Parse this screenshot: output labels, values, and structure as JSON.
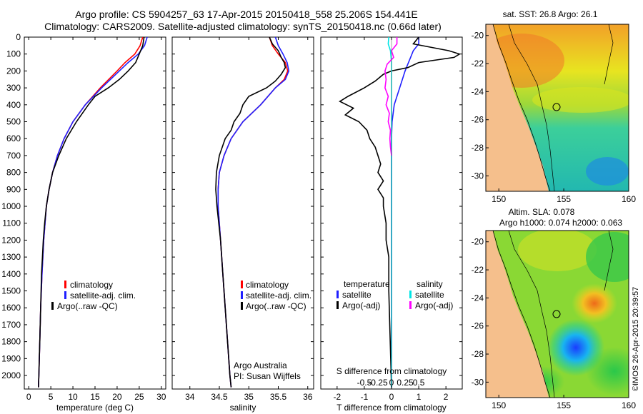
{
  "header": {
    "line1": "Argo profile: CS 5904257_63 17-Apr-2015 20150418_558 25.206S 154.441E",
    "line2": "Climatology: CARS2009. Satellite-adjusted climatology: synTS_20150418.nc (0.66d later)"
  },
  "colors": {
    "climatology": "#ff0000",
    "satellite": "#1f1fff",
    "argo": "#000000",
    "sat_salinity": "#00e5e5",
    "argo_salinity": "#ff00ff",
    "land": "#f5bf8c"
  },
  "chart_data": [
    {
      "type": "line",
      "id": "temperature",
      "xlabel": "temperature (deg C)",
      "xlim": [
        -1,
        31
      ],
      "xticks": [
        "0",
        "5",
        "10",
        "15",
        "20",
        "25",
        "30"
      ],
      "ylim": [
        0,
        2080
      ],
      "yticks": [
        "0",
        "100",
        "200",
        "300",
        "400",
        "500",
        "600",
        "700",
        "800",
        "900",
        "1000",
        "1100",
        "1200",
        "1300",
        "1400",
        "1500",
        "1600",
        "1700",
        "1800",
        "1900",
        "2000"
      ],
      "legend": [
        "climatology",
        "satellite-adj. clim.",
        "Argo(..raw -QC)"
      ],
      "series": [
        {
          "name": "climatology",
          "color": "#ff0000",
          "depth": [
            0,
            50,
            100,
            150,
            200,
            300,
            400,
            500,
            600,
            700,
            800,
            900,
            1000,
            1200,
            1400,
            1600,
            1800,
            2000,
            2070
          ],
          "values": [
            25.8,
            25.2,
            24.0,
            21.8,
            20.0,
            16.2,
            12.8,
            10.0,
            8.0,
            6.5,
            5.4,
            4.6,
            4.0,
            3.4,
            3.0,
            2.7,
            2.5,
            2.3,
            2.2
          ]
        },
        {
          "name": "satellite-adj. clim.",
          "color": "#1f1fff",
          "depth": [
            0,
            50,
            100,
            150,
            200,
            300,
            400,
            500,
            600,
            700,
            800,
            900,
            1000,
            1200,
            1400,
            1600,
            1800,
            2000,
            2070
          ],
          "values": [
            26.8,
            26.2,
            24.8,
            22.5,
            20.5,
            16.5,
            12.8,
            10.0,
            8.0,
            6.5,
            5.4,
            4.6,
            4.0,
            3.4,
            3.0,
            2.7,
            2.5,
            2.3,
            2.2
          ]
        },
        {
          "name": "Argo",
          "color": "#000000",
          "depth": [
            0,
            50,
            100,
            150,
            200,
            250,
            300,
            350,
            400,
            500,
            600,
            700,
            800,
            900,
            1000,
            1100,
            1200,
            1300,
            1400,
            1500,
            1600,
            1700,
            1800,
            1900,
            2000,
            2070
          ],
          "values": [
            26.1,
            25.8,
            25.0,
            24.2,
            22.5,
            20.5,
            18.0,
            15.0,
            13.5,
            10.8,
            8.5,
            6.8,
            5.4,
            4.6,
            4.0,
            3.6,
            3.3,
            3.1,
            2.9,
            2.8,
            2.7,
            2.6,
            2.5,
            2.4,
            2.3,
            2.2
          ]
        }
      ]
    },
    {
      "type": "line",
      "id": "salinity",
      "xlabel": "salinity",
      "xlim": [
        33.7,
        36.1
      ],
      "xticks": [
        "34",
        "34.5",
        "35",
        "35.5",
        "36"
      ],
      "ylim": [
        0,
        2080
      ],
      "legend": [
        "climatology",
        "satellite-adj. clim.",
        "Argo(..raw -QC)"
      ],
      "annotation": [
        "Argo Australia",
        "PI: Susan Wijffels"
      ],
      "series": [
        {
          "name": "climatology",
          "color": "#ff0000",
          "depth": [
            0,
            50,
            100,
            150,
            200,
            250,
            300,
            400,
            500,
            600,
            700,
            800,
            900,
            1000,
            1200,
            1400,
            1600,
            1800,
            2000,
            2070
          ],
          "values": [
            35.35,
            35.4,
            35.5,
            35.62,
            35.66,
            35.6,
            35.45,
            35.2,
            34.9,
            34.7,
            34.58,
            34.5,
            34.48,
            34.48,
            34.52,
            34.56,
            34.6,
            34.64,
            34.68,
            34.7
          ]
        },
        {
          "name": "satellite-adj. clim.",
          "color": "#1f1fff",
          "depth": [
            0,
            50,
            100,
            150,
            200,
            250,
            300,
            400,
            500,
            600,
            700,
            800,
            900,
            1000,
            1200,
            1400,
            1600,
            1800,
            2000,
            2070
          ],
          "values": [
            35.45,
            35.5,
            35.58,
            35.65,
            35.68,
            35.62,
            35.45,
            35.2,
            34.9,
            34.7,
            34.58,
            34.5,
            34.48,
            34.48,
            34.52,
            34.56,
            34.6,
            34.64,
            34.68,
            34.7
          ]
        },
        {
          "name": "Argo",
          "color": "#000000",
          "depth": [
            0,
            40,
            80,
            120,
            150,
            180,
            220,
            260,
            300,
            350,
            400,
            450,
            500,
            550,
            600,
            700,
            800,
            900,
            1000,
            1200,
            1400,
            1600,
            1800,
            2000,
            2070
          ],
          "values": [
            35.35,
            35.4,
            35.5,
            35.55,
            35.6,
            35.62,
            35.55,
            35.45,
            35.3,
            35.0,
            34.9,
            34.85,
            34.75,
            34.7,
            34.6,
            34.5,
            34.45,
            34.44,
            34.46,
            34.52,
            34.56,
            34.6,
            34.64,
            34.68,
            34.7
          ]
        }
      ]
    },
    {
      "type": "line",
      "id": "difference",
      "xlabel": "T difference from climatology",
      "xlabel_top": "S difference from climatology",
      "xlim": [
        -2.6,
        2.6
      ],
      "xticks": [
        "-2",
        "-1",
        "0",
        "1",
        "2"
      ],
      "xticks_s": [
        "-0.5",
        "-0.25",
        "0",
        "0.25",
        "0.5"
      ],
      "ylim": [
        0,
        2080
      ],
      "legend_t": {
        "title": "temperature",
        "items": [
          "satellite",
          "Argo(-adj)"
        ]
      },
      "legend_s": {
        "title": "salinity",
        "items": [
          "satellite",
          "Argo(-adj)"
        ]
      },
      "series": [
        {
          "name": "T satellite",
          "color": "#1f1fff",
          "depth": [
            0,
            40,
            80,
            120,
            160,
            200,
            300,
            400,
            500,
            600,
            700,
            800,
            1000,
            1200,
            1500,
            2070
          ],
          "values": [
            1.0,
            1.0,
            0.8,
            0.7,
            0.6,
            0.5,
            0.3,
            0.1,
            0.02,
            0.0,
            0.0,
            0.0,
            0.0,
            0.0,
            0.0,
            0.0
          ]
        },
        {
          "name": "T Argo",
          "color": "#000000",
          "depth": [
            0,
            40,
            80,
            100,
            120,
            150,
            180,
            200,
            220,
            260,
            300,
            350,
            380,
            420,
            460,
            500,
            550,
            600,
            650,
            700,
            750,
            800,
            850,
            900,
            950,
            1000,
            1100,
            1200,
            1300,
            1500,
            2070
          ],
          "values": [
            1.0,
            0.8,
            2.1,
            2.5,
            2.3,
            1.0,
            0.6,
            0.0,
            -0.3,
            -0.6,
            -1.0,
            -1.6,
            -1.9,
            -1.4,
            -1.7,
            -1.2,
            -0.9,
            -0.8,
            -0.6,
            -0.5,
            -0.4,
            -0.5,
            -0.3,
            -0.5,
            -0.3,
            -0.3,
            -0.2,
            -0.2,
            -0.1,
            -0.1,
            0.0
          ]
        },
        {
          "name": "S satellite",
          "color": "#00e5e5",
          "depth": [
            0,
            40,
            80,
            150,
            250,
            400,
            600,
            800,
            1200,
            2070
          ],
          "values": [
            -0.05,
            -0.06,
            -0.02,
            0.0,
            0.0,
            0.0,
            0.0,
            0.0,
            0.0,
            0.0
          ]
        },
        {
          "name": "S Argo",
          "color": "#ff00ff",
          "depth": [
            0,
            40,
            80,
            120,
            160,
            200,
            250,
            300,
            350,
            400,
            450,
            500,
            550,
            600,
            650,
            700
          ],
          "values": [
            0.1,
            0.1,
            0.0,
            0.04,
            -0.08,
            -0.12,
            -0.1,
            -0.12,
            -0.06,
            -0.1,
            -0.04,
            -0.06,
            -0.02,
            -0.03,
            -0.02,
            0.0
          ]
        }
      ]
    }
  ],
  "maps": {
    "sst": {
      "title": "sat. SST: 26.8 Argo: 26.1",
      "xticks": [
        "150",
        "155",
        "160"
      ],
      "yticks": [
        "-20",
        "-22",
        "-24",
        "-26",
        "-28",
        "-30"
      ]
    },
    "sla": {
      "title1": "Altim. SLA: 0.078",
      "title2": "Argo h1000: 0.074 h2000: 0.063",
      "xticks": [
        "150",
        "155",
        "160"
      ],
      "yticks": [
        "-20",
        "-22",
        "-24",
        "-26",
        "-28",
        "-30"
      ]
    }
  },
  "watermark": "©IMOS 26-Apr-2015 20:39:57"
}
